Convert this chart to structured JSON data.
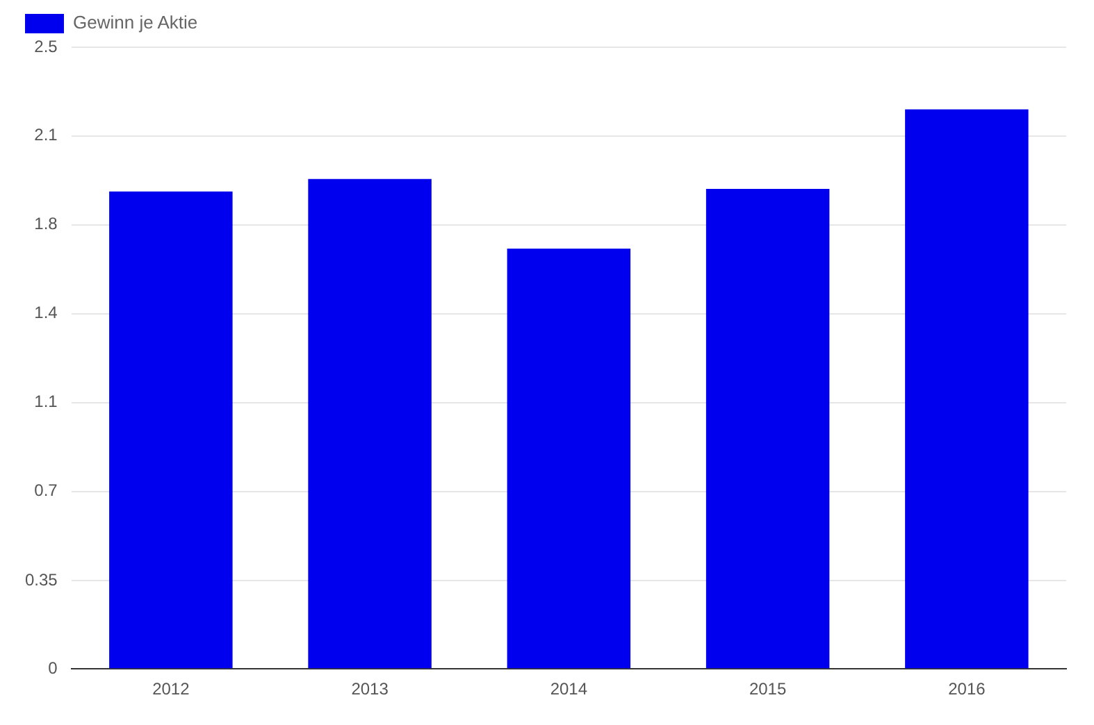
{
  "chart_data": {
    "type": "bar",
    "categories": [
      "2012",
      "2013",
      "2014",
      "2015",
      "2016"
    ],
    "series": [
      {
        "name": "Gewinn je Aktie",
        "color": "#0000ee",
        "values": [
          1.92,
          1.97,
          1.69,
          1.93,
          2.25
        ]
      }
    ],
    "ylim": [
      0,
      2.5
    ],
    "yticks": [
      0,
      {
        "value": 0.354,
        "label": "0.35"
      },
      {
        "value": 0.714,
        "label": "0.7"
      },
      {
        "value": 1.071,
        "label": "1.1"
      },
      {
        "value": 1.429,
        "label": "1.4"
      },
      {
        "value": 1.786,
        "label": "1.8"
      },
      {
        "value": 2.143,
        "label": "2.1"
      },
      2.5
    ],
    "grid": "y",
    "legend": "top left"
  }
}
